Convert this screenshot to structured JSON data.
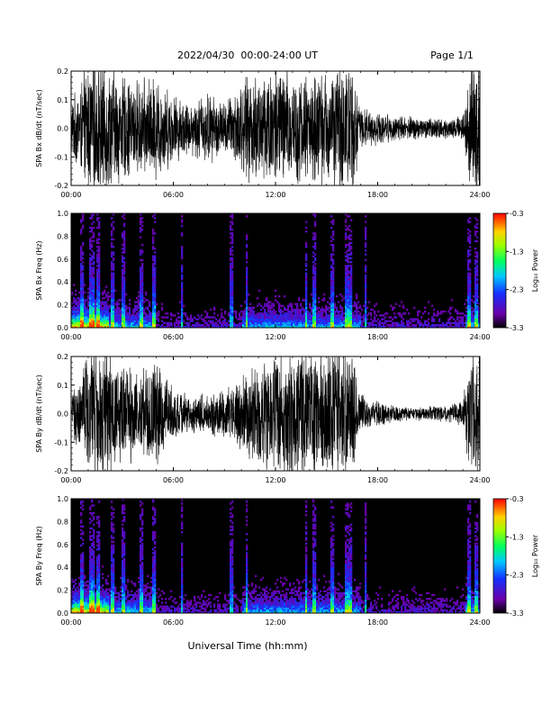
{
  "header": {
    "title": "2022/04/30  00:00-24:00 UT",
    "page": "Page 1/1"
  },
  "footer": {
    "xlabel": "Universal Time (hh:mm)"
  },
  "chart_data": [
    {
      "type": "line",
      "ylabel": "SPA Bx dB/dt (nT/sec)",
      "xlim": [
        "00:00",
        "24:00"
      ],
      "ylim": [
        -0.2,
        0.2
      ],
      "xticks": [
        "00:00",
        "06:00",
        "12:00",
        "18:00",
        "24:00"
      ],
      "yticks": [
        "-0.2",
        "-0.1",
        "0.0",
        "0.1",
        "0.2"
      ],
      "envelope": {
        "hours": [
          0,
          0.5,
          1,
          1.5,
          2,
          3,
          4,
          5,
          6,
          7,
          8,
          9,
          10,
          11,
          12,
          13,
          14,
          15,
          16,
          16.5,
          17,
          18,
          19,
          20,
          21,
          22,
          23,
          23.5,
          24
        ],
        "amplitude": [
          0.11,
          0.16,
          0.25,
          0.25,
          0.25,
          0.2,
          0.18,
          0.2,
          0.13,
          0.1,
          0.14,
          0.1,
          0.18,
          0.22,
          0.25,
          0.22,
          0.2,
          0.22,
          0.25,
          0.25,
          0.08,
          0.06,
          0.05,
          0.045,
          0.04,
          0.04,
          0.05,
          0.25,
          0.25
        ]
      }
    },
    {
      "type": "heatmap",
      "ylabel": "SPA Bx Freq (Hz)",
      "colorbar_label": "Log₁₀ Power",
      "colorbar_ticks": [
        "-0.3",
        "-1.3",
        "-2.3",
        "-3.3"
      ],
      "zlim": [
        -3.3,
        -0.3
      ],
      "xlim": [
        "00:00",
        "24:00"
      ],
      "ylim": [
        0,
        1.0
      ],
      "xticks": [
        "00:00",
        "06:00",
        "12:00",
        "18:00",
        "24:00"
      ],
      "yticks": [
        "0.0",
        "0.2",
        "0.4",
        "0.6",
        "0.8",
        "1.0"
      ],
      "spikes_hours": [
        0.6,
        1.1,
        1.3,
        1.6,
        2.4,
        3.1,
        4.1,
        4.9,
        6.5,
        9.4,
        10.3,
        13.8,
        14.3,
        15.3,
        16.2,
        16.4,
        17.3,
        23.4,
        23.8
      ]
    },
    {
      "type": "line",
      "ylabel": "SPA By dB/dt (nT/sec)",
      "xlim": [
        "00:00",
        "24:00"
      ],
      "ylim": [
        -0.2,
        0.2
      ],
      "xticks": [
        "00:00",
        "06:00",
        "12:00",
        "18:00",
        "24:00"
      ],
      "yticks": [
        "-0.2",
        "-0.1",
        "0.0",
        "0.1",
        "0.2"
      ],
      "envelope": {
        "hours": [
          0,
          0.5,
          1,
          1.5,
          2,
          3,
          4,
          5,
          6,
          7,
          8,
          9,
          10,
          11,
          12,
          13,
          14,
          15,
          16,
          16.5,
          17,
          18,
          19,
          20,
          21,
          22,
          23,
          23.5,
          24
        ],
        "amplitude": [
          0.08,
          0.14,
          0.25,
          0.25,
          0.25,
          0.19,
          0.17,
          0.2,
          0.1,
          0.07,
          0.08,
          0.09,
          0.14,
          0.2,
          0.25,
          0.22,
          0.25,
          0.25,
          0.25,
          0.25,
          0.07,
          0.05,
          0.03,
          0.025,
          0.03,
          0.03,
          0.05,
          0.25,
          0.25
        ]
      }
    },
    {
      "type": "heatmap",
      "ylabel": "SPA By Freq (Hz)",
      "colorbar_label": "Log₁₀ Power",
      "colorbar_ticks": [
        "-0.3",
        "-1.3",
        "-2.3",
        "-3.3"
      ],
      "zlim": [
        -3.3,
        -0.3
      ],
      "xlim": [
        "00:00",
        "24:00"
      ],
      "ylim": [
        0,
        1.0
      ],
      "xticks": [
        "00:00",
        "06:00",
        "12:00",
        "18:00",
        "24:00"
      ],
      "yticks": [
        "0.0",
        "0.2",
        "0.4",
        "0.6",
        "0.8",
        "1.0"
      ],
      "spikes_hours": [
        0.6,
        1.1,
        1.3,
        1.6,
        2.4,
        3.1,
        4.1,
        4.9,
        6.5,
        9.4,
        10.3,
        13.8,
        14.3,
        15.3,
        16.2,
        16.4,
        17.3,
        23.4,
        23.8
      ]
    }
  ]
}
